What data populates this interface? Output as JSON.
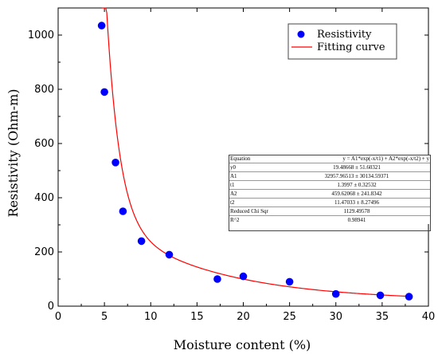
{
  "chart_data": {
    "type": "scatter",
    "xlabel": "Moisture content (%)",
    "ylabel": "Resistivity (Ohm-m)",
    "xlim": [
      0,
      40
    ],
    "ylim": [
      0,
      1100
    ],
    "xticks": [
      "0",
      "5",
      "10",
      "15",
      "20",
      "25",
      "30",
      "35",
      "40"
    ],
    "yticks": [
      "0",
      "200",
      "400",
      "600",
      "800",
      "1000"
    ],
    "grid": false,
    "legend_position": "top-right",
    "series": [
      {
        "name": "Resistivity",
        "kind": "scatter",
        "color": "#0000ff",
        "x": [
          4.7,
          5.0,
          6.2,
          7.0,
          9.0,
          12.0,
          17.2,
          20.0,
          25.0,
          30.0,
          34.8,
          37.9
        ],
        "y": [
          1035,
          790,
          530,
          350,
          240,
          190,
          100,
          110,
          90,
          45,
          40,
          35
        ]
      },
      {
        "name": "Fitting curve",
        "kind": "line",
        "color": "#ff0000",
        "x_range": [
          4.7,
          38
        ],
        "model": {
          "y0": 19.48668,
          "A1": 32957.96513,
          "t1": 1.3997,
          "A2": 459.62068,
          "t2": 11.47033
        }
      }
    ],
    "fit_table": [
      {
        "param": "Equation",
        "value": "y = A1*exp(-x/t1) + A2*exp(-x/t2) + y"
      },
      {
        "param": "y0",
        "value": "19.48668 ± 51.60321"
      },
      {
        "param": "A1",
        "value": "32957.96513 ± 30134.59371"
      },
      {
        "param": "t1",
        "value": "1.3997 ± 0.32532"
      },
      {
        "param": "A2",
        "value": "459.62068 ± 241.8342"
      },
      {
        "param": "t2",
        "value": "11.47033 ± 8.27496"
      },
      {
        "param": "Reduced Chi Sqr",
        "value": "1129.49578"
      },
      {
        "param": "R^2",
        "value": "0.98941"
      }
    ]
  }
}
